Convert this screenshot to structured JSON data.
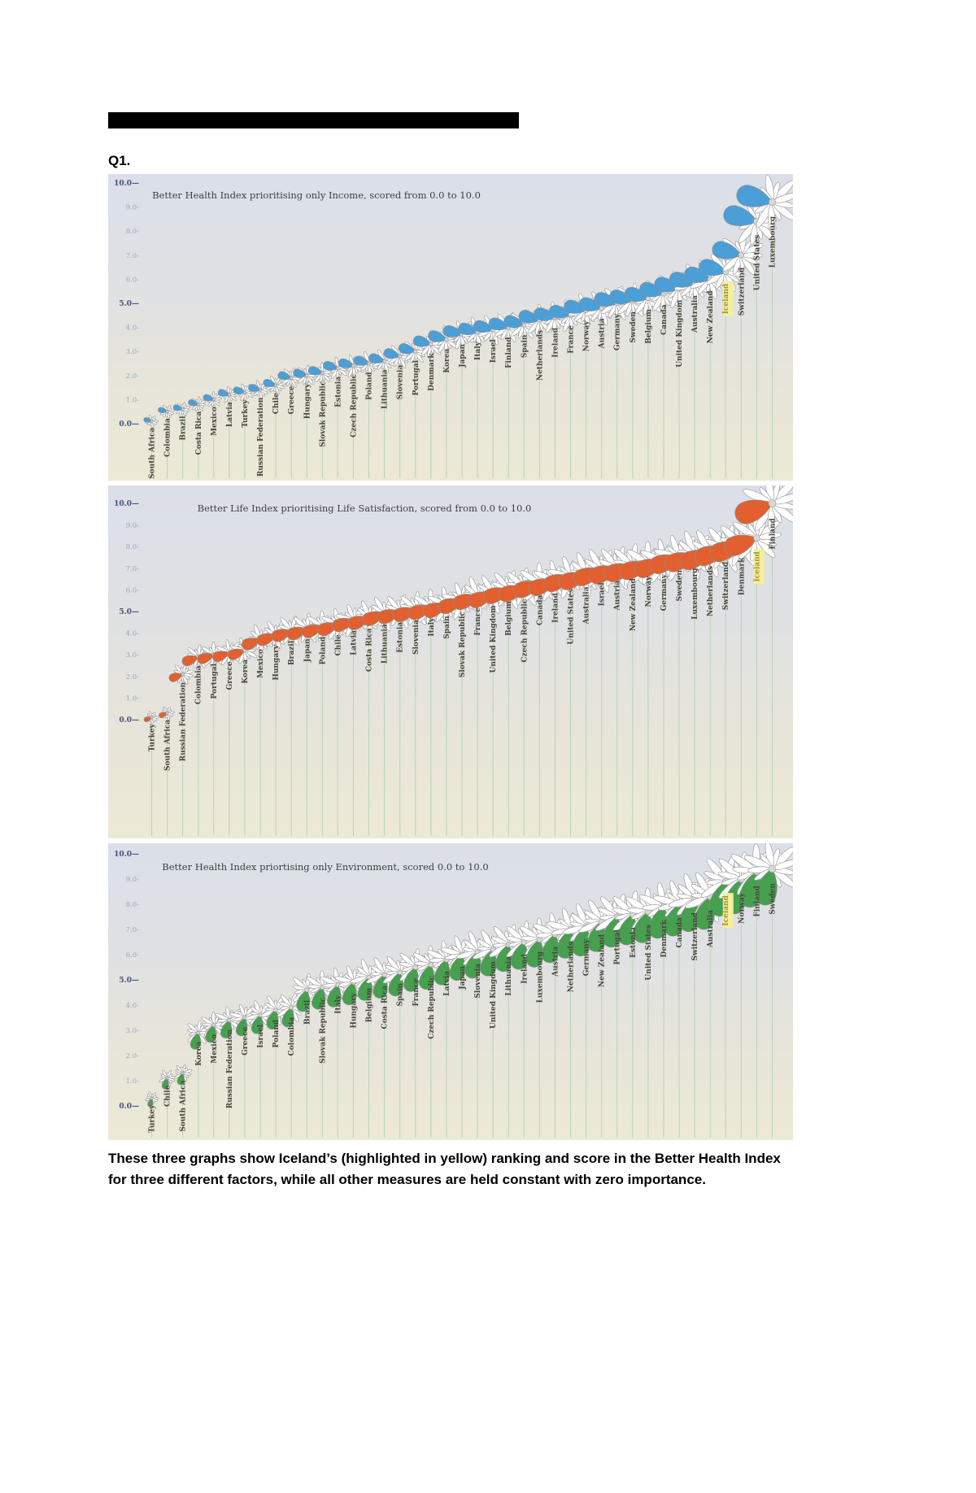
{
  "page": {
    "question_label": "Q1.",
    "caption": "These three graphs show Iceland’s (highlighted in yellow) ranking and score in the Better Health Index for three different factors, while all other measures are held constant with zero importance."
  },
  "chart_data": [
    {
      "type": "flower-rank",
      "title": "Better Health Index prioritising only Income, scored from 0.0 to 10.0",
      "petal_color": "#4a9fd8",
      "highlight_country": "Iceland",
      "highlight_bg": "#f4ee9f",
      "highlight_text_color": "#a3962f",
      "ylim": [
        0,
        10
      ],
      "yticks": [
        "10.0—",
        "9.0-",
        "8.0-",
        "7.0-",
        "6.0-",
        "5.0—",
        "4.0-",
        "3.0-",
        "2.0-",
        "1.0-",
        "0.0—"
      ],
      "categories": [
        "South Africa",
        "Colombia",
        "Brazil",
        "Costa Rica",
        "Mexico",
        "Latvia",
        "Turkey",
        "Russian Federation",
        "Chile",
        "Greece",
        "Hungary",
        "Slovak Republic",
        "Estonia",
        "Czech Republic",
        "Poland",
        "Lithuania",
        "Slovenia",
        "Portugal",
        "Denmark",
        "Korea",
        "Japan",
        "Italy",
        "Israel",
        "Finland",
        "Spain",
        "Netherlands",
        "Ireland",
        "France",
        "Norway",
        "Austria",
        "Germany",
        "Sweden",
        "Belgium",
        "Canada",
        "United Kingdom",
        "Australia",
        "New Zealand",
        "Iceland",
        "Switzerland",
        "United States",
        "Luxembourg"
      ],
      "values": [
        0.1,
        0.5,
        0.6,
        0.8,
        1.0,
        1.2,
        1.3,
        1.4,
        1.6,
        1.9,
        2.0,
        2.1,
        2.3,
        2.4,
        2.5,
        2.6,
        2.8,
        3.0,
        3.3,
        3.5,
        3.7,
        3.8,
        3.9,
        4.0,
        4.1,
        4.3,
        4.4,
        4.5,
        4.7,
        4.8,
        5.0,
        5.1,
        5.2,
        5.4,
        5.6,
        5.8,
        6.0,
        6.3,
        7.0,
        8.4,
        9.2
      ]
    },
    {
      "type": "flower-rank",
      "title": "Better Life Index prioritising Life Satisfaction, scored from 0.0 to 10.0",
      "petal_color": "#e2602f",
      "highlight_country": "Iceland",
      "highlight_bg": "#f4ee9f",
      "highlight_text_color": "#a3962f",
      "ylim": [
        0,
        10
      ],
      "yticks": [
        "10.0—",
        "9.0-",
        "8.0-",
        "7.0-",
        "6.0-",
        "5.0—",
        "4.0-",
        "3.0-",
        "2.0-",
        "1.0-",
        "0.0—"
      ],
      "categories": [
        "Turkey",
        "South Africa",
        "Russian Federation",
        "Colombia",
        "Portugal",
        "Greece",
        "Korea",
        "Mexico",
        "Hungary",
        "Brazil",
        "Japan",
        "Poland",
        "Chile",
        "Latvia",
        "Costa Rica",
        "Lithuania",
        "Estonia",
        "Slovenia",
        "Italy",
        "Spain",
        "Slovak Republic",
        "France",
        "United Kingdom",
        "Belgium",
        "Czech Republic",
        "Canada",
        "Ireland",
        "United States",
        "Australia",
        "Israel",
        "Austria",
        "New Zealand",
        "Norway",
        "Germany",
        "Sweden",
        "Luxembourg",
        "Netherlands",
        "Switzerland",
        "Denmark",
        "Iceland",
        "Finland"
      ],
      "values": [
        0.1,
        0.3,
        2.1,
        2.9,
        3.0,
        3.1,
        3.2,
        3.7,
        3.9,
        4.1,
        4.2,
        4.3,
        4.4,
        4.6,
        4.7,
        4.9,
        5.0,
        5.1,
        5.2,
        5.3,
        5.5,
        5.7,
        5.8,
        6.0,
        6.1,
        6.3,
        6.4,
        6.6,
        6.7,
        6.9,
        7.0,
        7.1,
        7.2,
        7.3,
        7.5,
        7.6,
        7.7,
        7.9,
        8.1,
        8.4,
        10.0
      ]
    },
    {
      "type": "flower-rank",
      "title": "Better Health Index priortising only Environment, scored 0.0 to 10.0",
      "petal_color": "#46a04f",
      "highlight_country": "Iceland",
      "highlight_bg": "#f4ee9f",
      "highlight_text_color": "#a3962f",
      "ylim": [
        0,
        10
      ],
      "yticks": [
        "10.0—",
        "9.0-",
        "8.0-",
        "7.0-",
        "6.0-",
        "5.0—",
        "4.0-",
        "3.0-",
        "2.0-",
        "1.0-",
        "0.0—"
      ],
      "categories": [
        "Turkey",
        "Chile",
        "South Africa",
        "Korea",
        "Mexico",
        "Russian Federation",
        "Greece",
        "Israel",
        "Poland",
        "Colombia",
        "Brazil",
        "Slovak Republic",
        "Italy",
        "Hungary",
        "Belgium",
        "Costa Rica",
        "Spain",
        "France",
        "Czech Republic",
        "Latvia",
        "Japan",
        "Slovenia",
        "United Kingdom",
        "Lithuania",
        "Ireland",
        "Luxembourg",
        "Austria",
        "Netherlands",
        "Germany",
        "New Zealand",
        "Portugal",
        "Estonia",
        "United States",
        "Denmark",
        "Canada",
        "Switzerland",
        "Australia",
        "Iceland",
        "Norway",
        "Finland",
        "Sweden"
      ],
      "values": [
        0.3,
        1.1,
        1.3,
        2.9,
        3.2,
        3.4,
        3.5,
        3.6,
        3.8,
        3.9,
        4.6,
        4.7,
        4.8,
        4.9,
        5.1,
        5.2,
        5.3,
        5.5,
        5.6,
        5.8,
        6.0,
        6.1,
        6.2,
        6.4,
        6.5,
        6.6,
        6.8,
        7.0,
        7.1,
        7.3,
        7.5,
        7.6,
        7.7,
        7.9,
        8.0,
        8.2,
        8.3,
        8.9,
        9.0,
        9.3,
        9.4
      ]
    }
  ]
}
